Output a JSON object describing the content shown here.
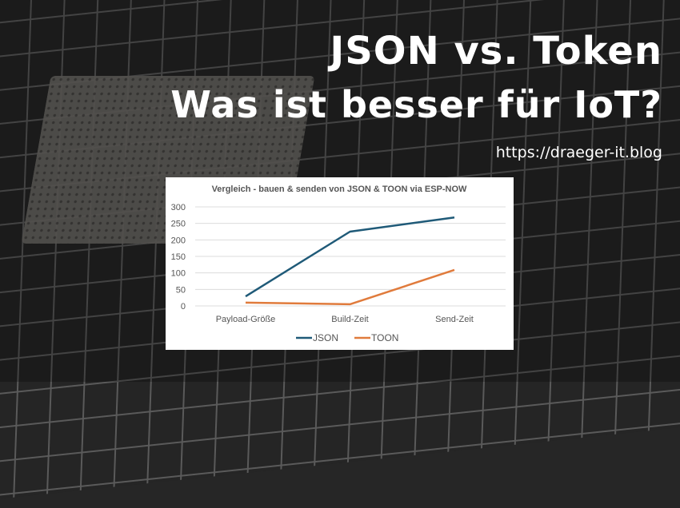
{
  "header": {
    "title_line1": "JSON vs. Token",
    "title_line2": "Was ist besser für IoT?",
    "url": "https://draeger-it.blog"
  },
  "chart_data": {
    "type": "line",
    "title": "Vergleich - bauen & senden von JSON & TOON via ESP-NOW",
    "categories": [
      "Payload-Größe",
      "Build-Zeit",
      "Send-Zeit"
    ],
    "series": [
      {
        "name": "JSON",
        "values": [
          29,
          225,
          268
        ],
        "color": "#1f5a78"
      },
      {
        "name": "TOON",
        "values": [
          10,
          5,
          109
        ],
        "color": "#e07b3c"
      }
    ],
    "ylim": [
      0,
      300
    ],
    "yticks": [
      "0",
      "50",
      "100",
      "150",
      "200",
      "250",
      "300"
    ],
    "grid": true,
    "legend": "bottom"
  }
}
